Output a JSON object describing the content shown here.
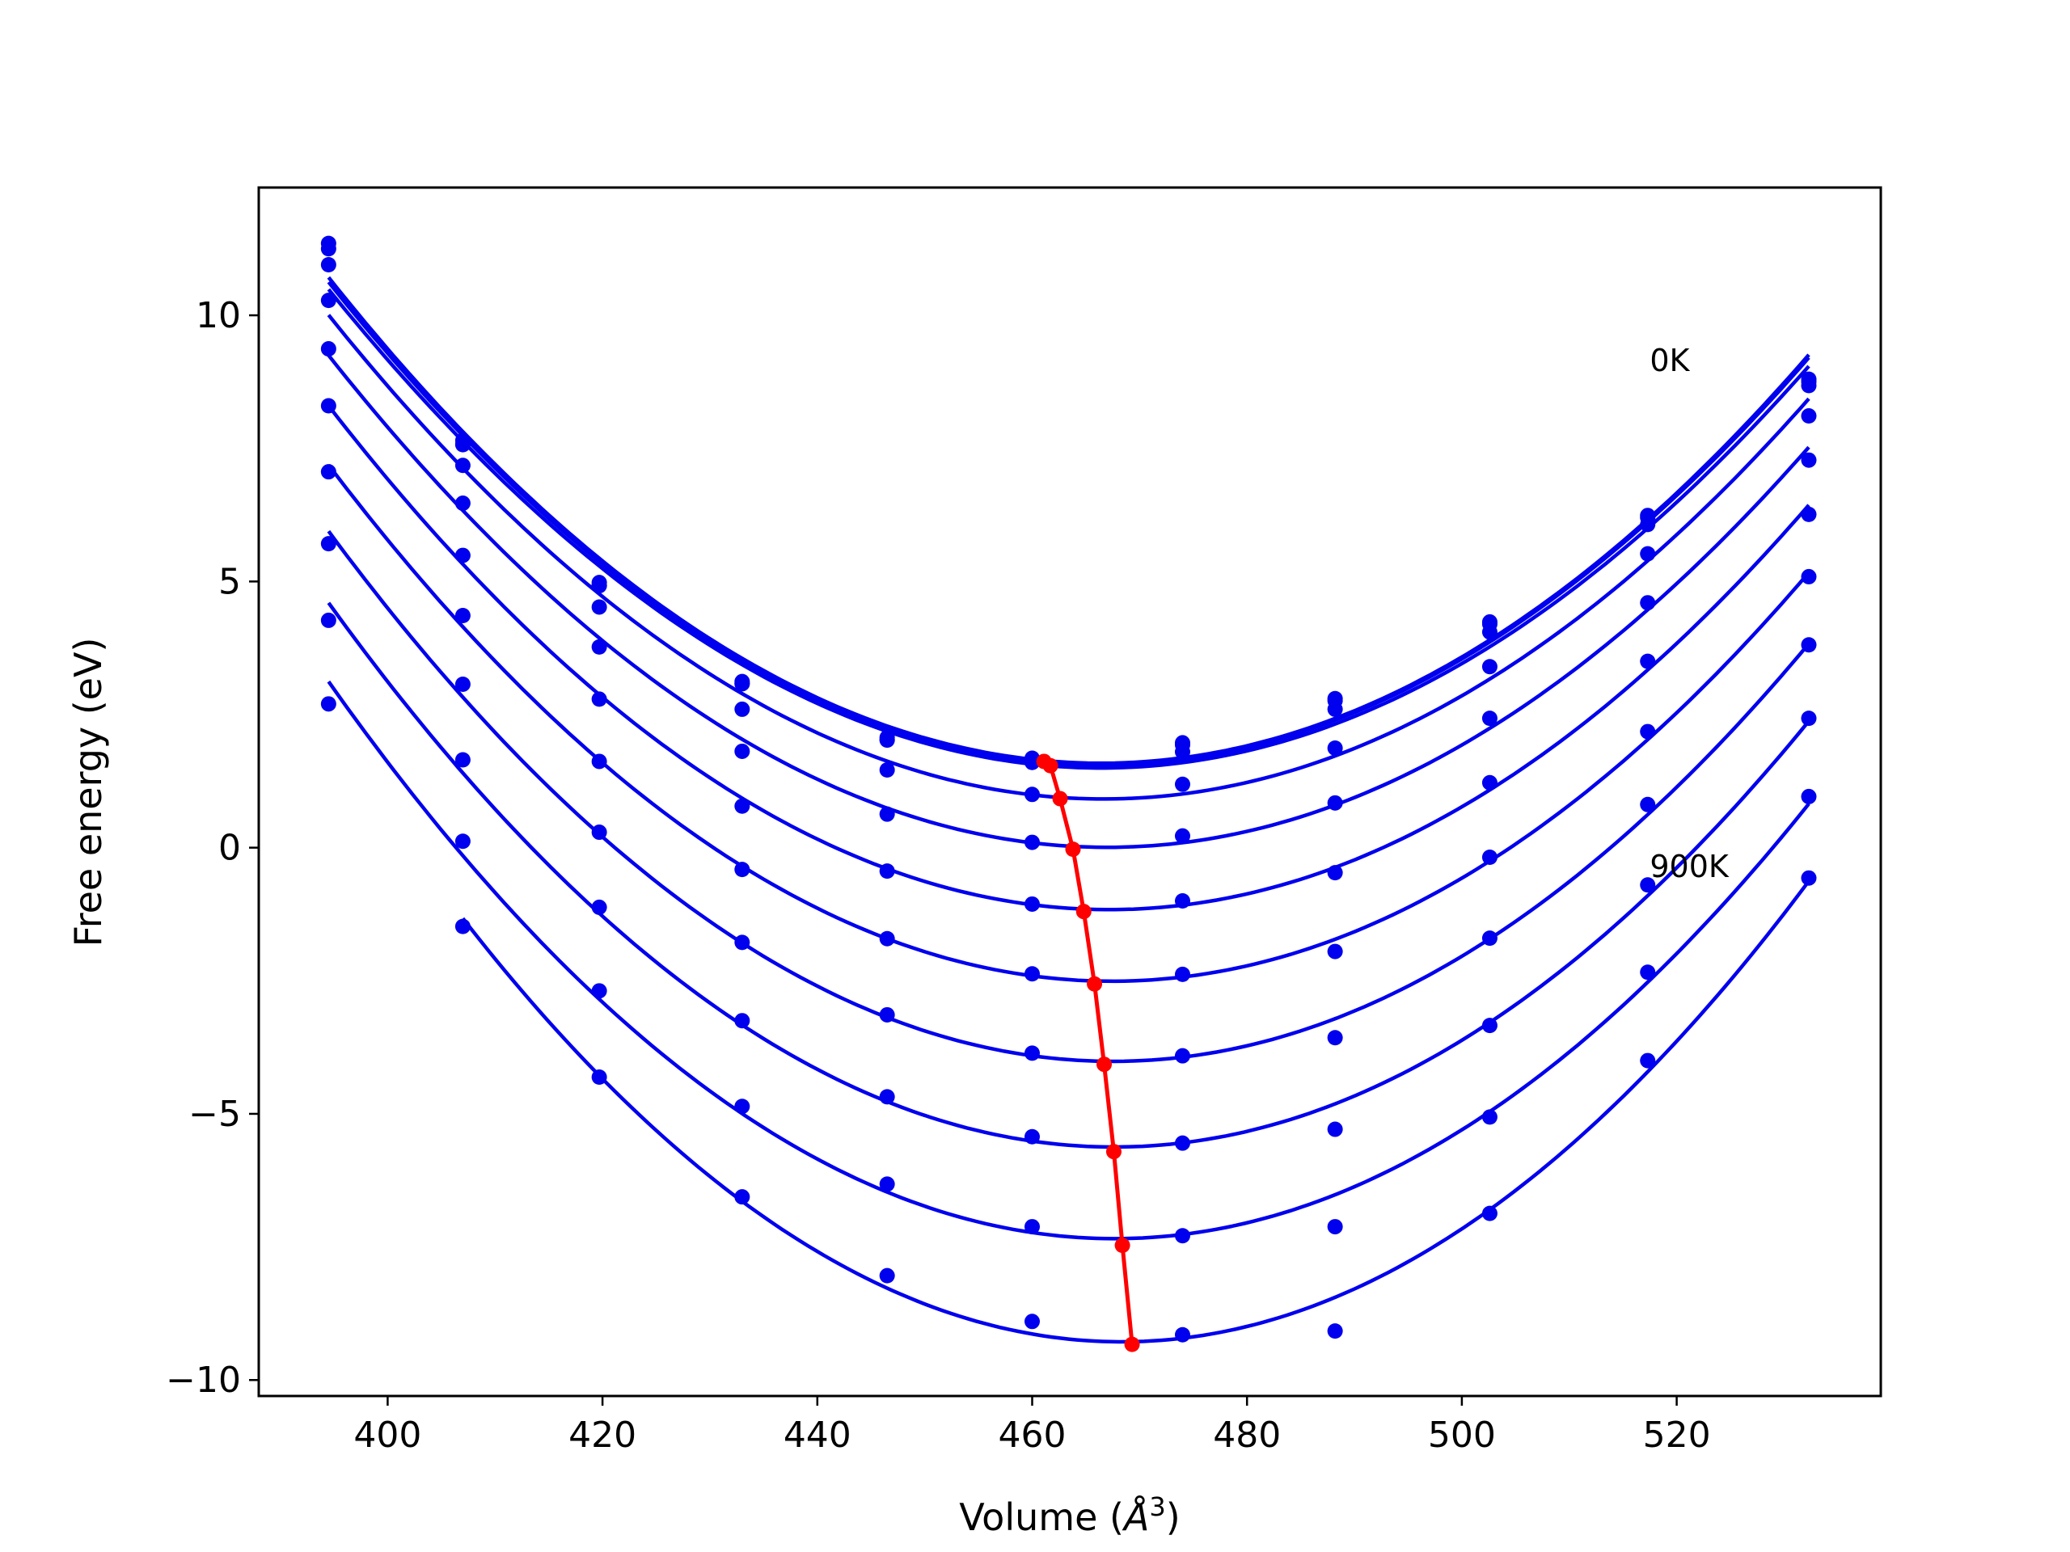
{
  "chart_data": {
    "type": "line",
    "title": "",
    "xlabel": "Volume (Å³)",
    "xlabel_parts": {
      "prefix": "Volume (",
      "unit": "Å",
      "exponent": "3",
      "suffix": ")"
    },
    "ylabel": "Free energy (eV)",
    "xlim": [
      388,
      539
    ],
    "ylim": [
      -10.3,
      12.4
    ],
    "xticks": [
      400,
      420,
      440,
      460,
      480,
      500,
      520
    ],
    "xtick_labels": [
      "400",
      "420",
      "440",
      "460",
      "480",
      "500",
      "520"
    ],
    "yticks": [
      -10,
      -5,
      0,
      5,
      10
    ],
    "ytick_labels": [
      "−10",
      "−5",
      "0",
      "5",
      "10"
    ],
    "grid": false,
    "legend": "none",
    "colors": {
      "curves": "#0000ee",
      "minimum_path": "#ff0000",
      "axes": "#000000"
    },
    "x": [
      394.5,
      407,
      419.7,
      433,
      446.5,
      460,
      474,
      488.2,
      502.6,
      517.3,
      532.3
    ],
    "temperature_series": [
      {
        "values": [
          11.35,
          7.65,
          4.98,
          3.12,
          2.07,
          1.68,
          1.97,
          2.8,
          4.24,
          6.24,
          8.8
        ]
      },
      {
        "values": [
          11.25,
          7.58,
          4.93,
          3.08,
          2.03,
          1.64,
          1.93,
          2.76,
          4.2,
          6.2,
          8.75
        ]
      },
      {
        "values": [
          10.95,
          7.57,
          4.92,
          3.08,
          2.02,
          1.6,
          1.8,
          2.6,
          4.05,
          6.07,
          8.68
        ]
      },
      {
        "values": [
          10.28,
          7.18,
          4.52,
          2.6,
          1.46,
          1.0,
          1.19,
          1.87,
          3.4,
          5.52,
          8.11
        ]
      },
      {
        "values": [
          9.37,
          6.47,
          3.77,
          1.81,
          0.63,
          0.1,
          0.22,
          0.84,
          2.43,
          4.6,
          7.28
        ]
      },
      {
        "values": [
          8.3,
          5.49,
          2.79,
          0.78,
          -0.44,
          -1.06,
          -1.0,
          -0.47,
          1.22,
          3.5,
          6.26
        ]
      },
      {
        "values": [
          7.06,
          4.36,
          1.62,
          -0.41,
          -1.71,
          -2.37,
          -2.38,
          -1.95,
          -0.18,
          2.18,
          5.09
        ]
      },
      {
        "values": [
          5.71,
          3.07,
          0.29,
          -1.78,
          -3.14,
          -3.86,
          -3.91,
          -3.57,
          -1.7,
          0.81,
          3.81
        ]
      },
      {
        "values": [
          4.27,
          1.65,
          -1.12,
          -3.25,
          -4.68,
          -5.43,
          -5.55,
          -5.29,
          -3.34,
          -0.7,
          2.43
        ]
      },
      {
        "values": [
          2.7,
          0.12,
          -2.69,
          -4.86,
          -6.32,
          -7.12,
          -7.29,
          -7.12,
          -5.06,
          -2.34,
          0.96
        ]
      },
      {
        "values": [
          null,
          -1.48,
          -4.31,
          -6.56,
          -8.04,
          -8.9,
          -9.15,
          -9.08,
          -6.87,
          -4.0,
          -0.57
        ]
      }
    ],
    "minimum_path": {
      "x": [
        461.1,
        461.7,
        462.6,
        463.8,
        464.8,
        465.8,
        466.7,
        467.6,
        468.4,
        469.3
      ],
      "y": [
        1.62,
        1.54,
        0.92,
        -0.03,
        -1.2,
        -2.56,
        -4.07,
        -5.71,
        -7.47,
        -9.33
      ]
    },
    "annotations": [
      {
        "text": "0K",
        "x": 517.5,
        "y": 8.95
      },
      {
        "text": "900K",
        "x": 517.5,
        "y": -0.55
      }
    ]
  }
}
